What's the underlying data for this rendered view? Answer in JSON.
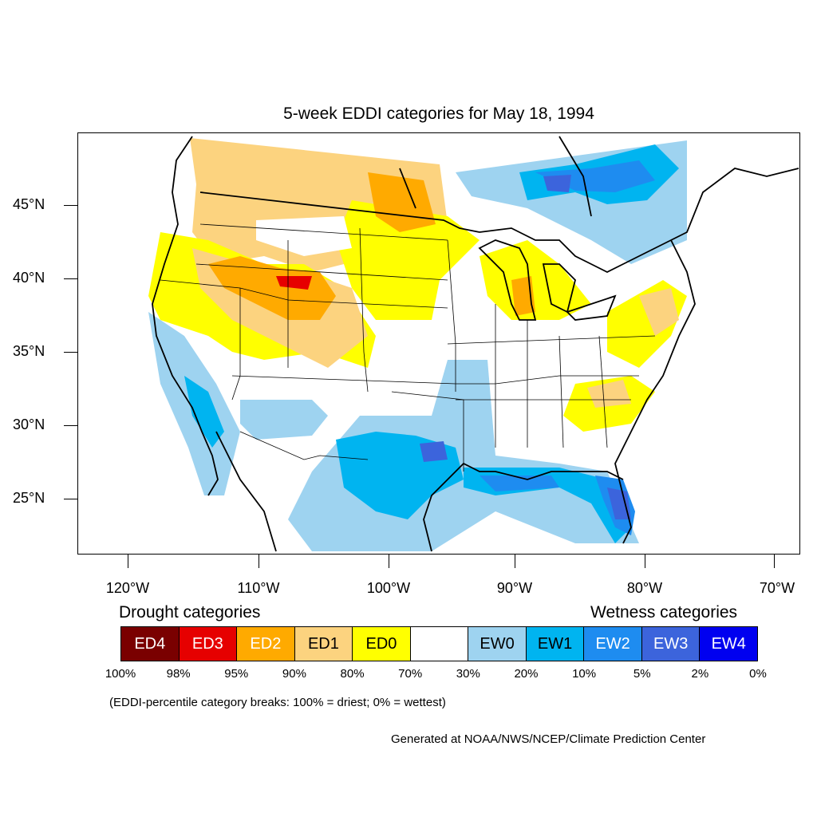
{
  "title": "5-week EDDI categories for May 18, 1994",
  "map": {
    "lat_labels": [
      "45°N",
      "40°N",
      "35°N",
      "30°N",
      "25°N"
    ],
    "lon_labels": [
      "120°W",
      "110°W",
      "100°W",
      "90°W",
      "80°W",
      "70°W"
    ]
  },
  "legend": {
    "drought_heading": "Drought categories",
    "wetness_heading": "Wetness categories",
    "categories": [
      {
        "label": "ED4",
        "color": "#7a0000",
        "text_color": "#ffffff"
      },
      {
        "label": "ED3",
        "color": "#e60000",
        "text_color": "#ffffff"
      },
      {
        "label": "ED2",
        "color": "#ffaa00",
        "text_color": "#ffffff"
      },
      {
        "label": "ED1",
        "color": "#fcd37f",
        "text_color": "#000000"
      },
      {
        "label": "ED0",
        "color": "#ffff00",
        "text_color": "#000000"
      },
      {
        "label": "",
        "color": "#ffffff",
        "text_color": "#000000"
      },
      {
        "label": "EW0",
        "color": "#9ed3f0",
        "text_color": "#000000"
      },
      {
        "label": "EW1",
        "color": "#00b4f0",
        "text_color": "#000000"
      },
      {
        "label": "EW2",
        "color": "#1e8cf0",
        "text_color": "#ffffff"
      },
      {
        "label": "EW3",
        "color": "#3c64dc",
        "text_color": "#ffffff"
      },
      {
        "label": "EW4",
        "color": "#0000f0",
        "text_color": "#ffffff"
      }
    ],
    "percent_breaks": [
      "100%",
      "98%",
      "95%",
      "90%",
      "80%",
      "70%",
      "30%",
      "20%",
      "10%",
      "5%",
      "2%",
      "0%"
    ]
  },
  "note": "(EDDI-percentile category breaks: 100% = driest; 0% = wettest)",
  "credit": "Generated at NOAA/NWS/NCEP/Climate Prediction Center"
}
